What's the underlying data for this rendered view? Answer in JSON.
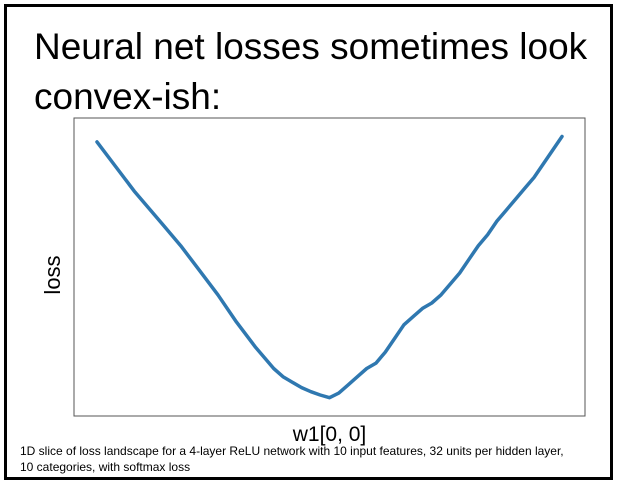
{
  "title": "Neural net losses sometimes look\nconvex-ish:",
  "caption": "1D slice of loss landscape for a 4-layer ReLU network with 10 input features, 32 units per hidden layer, 10 categories, with softmax loss",
  "colors": {
    "line": "#2f78b0",
    "axes": "#555555",
    "text": "#000000"
  },
  "chart_data": {
    "type": "line",
    "xlabel": "w1[0, 0]",
    "ylabel": "loss",
    "xlim": [
      0,
      100
    ],
    "ylim": [
      0,
      100
    ],
    "grid": false,
    "legend": "none",
    "series": [
      {
        "x": [
          0,
          4,
          8,
          10,
          14,
          18,
          22,
          26,
          30,
          34,
          38,
          40,
          42,
          44,
          46,
          48,
          50,
          52,
          54,
          56,
          58,
          60,
          62,
          64,
          66,
          68,
          70,
          72,
          74,
          76,
          78,
          80,
          82,
          84,
          86,
          88,
          90,
          92,
          94,
          96,
          98,
          100
        ],
        "y": [
          96,
          87,
          78,
          74,
          66,
          58,
          49,
          40,
          30,
          21,
          13,
          10,
          8,
          6,
          4.5,
          3.3,
          2.3,
          4,
          7,
          10,
          13,
          15,
          19,
          24,
          29,
          32,
          35,
          37,
          40,
          44,
          48,
          53,
          58,
          62,
          67,
          71,
          75,
          79,
          83,
          88,
          93,
          98
        ]
      }
    ]
  }
}
